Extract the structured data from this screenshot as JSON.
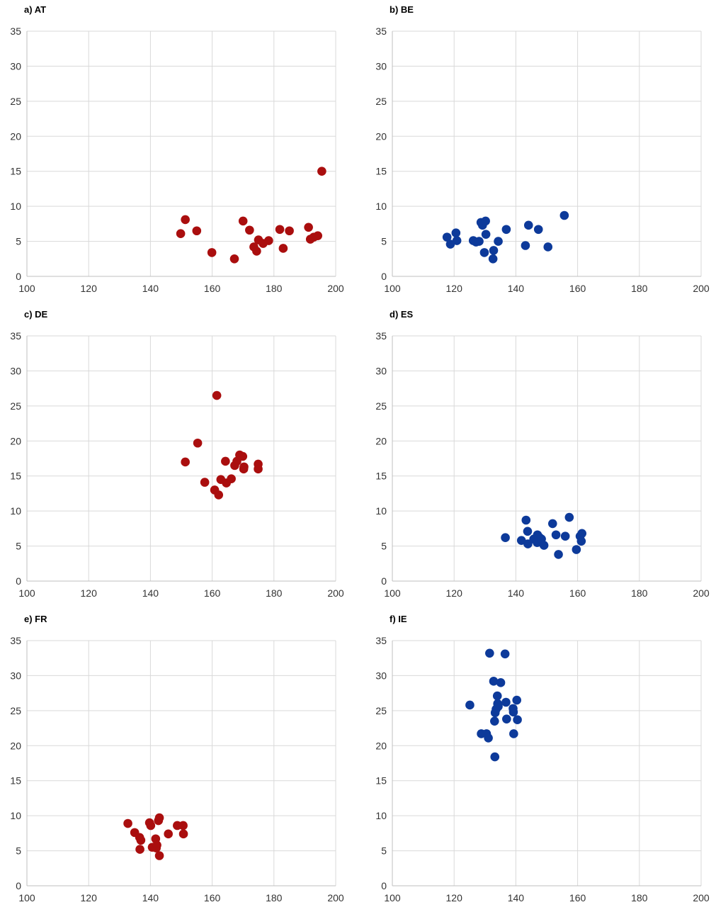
{
  "chart_data": [
    {
      "type": "scatter",
      "title": "a) AT",
      "xlim": [
        100,
        200
      ],
      "ylim": [
        0,
        35
      ],
      "xticks": [
        100,
        120,
        140,
        160,
        180,
        200
      ],
      "yticks": [
        0,
        5,
        10,
        15,
        20,
        25,
        30,
        35
      ],
      "grid": true,
      "color": "#aa0e0e",
      "points": [
        [
          149.8,
          6.1
        ],
        [
          151.3,
          8.1
        ],
        [
          155.0,
          6.5
        ],
        [
          159.9,
          3.4
        ],
        [
          167.2,
          2.5
        ],
        [
          170.0,
          7.9
        ],
        [
          172.1,
          6.6
        ],
        [
          173.5,
          4.2
        ],
        [
          174.4,
          3.6
        ],
        [
          175.0,
          5.2
        ],
        [
          176.5,
          4.7
        ],
        [
          178.3,
          5.1
        ],
        [
          181.9,
          6.7
        ],
        [
          183.0,
          4.0
        ],
        [
          185.0,
          6.5
        ],
        [
          191.2,
          7.0
        ],
        [
          191.8,
          5.3
        ],
        [
          192.9,
          5.6
        ],
        [
          194.2,
          5.8
        ],
        [
          195.5,
          15.0
        ]
      ]
    },
    {
      "type": "scatter",
      "title": "b) BE",
      "xlim": [
        100,
        200
      ],
      "ylim": [
        0,
        35
      ],
      "xticks": [
        100,
        120,
        140,
        160,
        180,
        200
      ],
      "yticks": [
        0,
        5,
        10,
        15,
        20,
        25,
        30,
        35
      ],
      "grid": true,
      "color": "#0d3a9a",
      "points": [
        [
          117.7,
          5.6
        ],
        [
          118.8,
          4.6
        ],
        [
          120.6,
          6.2
        ],
        [
          120.9,
          5.1
        ],
        [
          126.2,
          5.1
        ],
        [
          127.1,
          4.9
        ],
        [
          128.1,
          5.0
        ],
        [
          128.7,
          7.7
        ],
        [
          129.2,
          7.3
        ],
        [
          129.8,
          3.4
        ],
        [
          130.2,
          7.9
        ],
        [
          130.3,
          6.0
        ],
        [
          132.6,
          2.5
        ],
        [
          132.8,
          3.7
        ],
        [
          134.3,
          5.0
        ],
        [
          136.9,
          6.7
        ],
        [
          143.1,
          4.4
        ],
        [
          144.1,
          7.3
        ],
        [
          147.3,
          6.7
        ],
        [
          150.4,
          4.2
        ],
        [
          155.7,
          8.7
        ]
      ]
    },
    {
      "type": "scatter",
      "title": "c) DE",
      "xlim": [
        100,
        200
      ],
      "ylim": [
        0,
        35
      ],
      "xticks": [
        100,
        120,
        140,
        160,
        180,
        200
      ],
      "yticks": [
        0,
        5,
        10,
        15,
        20,
        25,
        30,
        35
      ],
      "grid": true,
      "color": "#aa0e0e",
      "points": [
        [
          151.3,
          17.0
        ],
        [
          155.3,
          19.7
        ],
        [
          157.6,
          14.1
        ],
        [
          160.8,
          13.0
        ],
        [
          161.5,
          26.5
        ],
        [
          162.1,
          12.3
        ],
        [
          162.8,
          14.5
        ],
        [
          164.3,
          17.1
        ],
        [
          164.6,
          14.0
        ],
        [
          166.2,
          14.6
        ],
        [
          167.3,
          16.5
        ],
        [
          168.0,
          17.1
        ],
        [
          168.9,
          18.0
        ],
        [
          169.9,
          17.8
        ],
        [
          170.2,
          16.0
        ],
        [
          170.3,
          16.3
        ],
        [
          174.9,
          16.7
        ],
        [
          174.9,
          16.0
        ]
      ]
    },
    {
      "type": "scatter",
      "title": "d) ES",
      "xlim": [
        100,
        200
      ],
      "ylim": [
        0,
        35
      ],
      "xticks": [
        100,
        120,
        140,
        160,
        180,
        200
      ],
      "yticks": [
        0,
        5,
        10,
        15,
        20,
        25,
        30,
        35
      ],
      "grid": true,
      "color": "#0d3a9a",
      "points": [
        [
          136.6,
          6.2
        ],
        [
          141.8,
          5.8
        ],
        [
          143.3,
          8.7
        ],
        [
          143.8,
          7.1
        ],
        [
          143.9,
          5.3
        ],
        [
          145.8,
          6.0
        ],
        [
          146.9,
          5.5
        ],
        [
          147.0,
          6.6
        ],
        [
          147.7,
          6.2
        ],
        [
          148.3,
          6.0
        ],
        [
          149.1,
          5.1
        ],
        [
          151.9,
          8.2
        ],
        [
          153.0,
          6.6
        ],
        [
          153.8,
          3.8
        ],
        [
          156.0,
          6.4
        ],
        [
          157.3,
          9.1
        ],
        [
          159.6,
          4.5
        ],
        [
          160.8,
          6.4
        ],
        [
          161.2,
          5.7
        ],
        [
          161.4,
          6.8
        ]
      ]
    },
    {
      "type": "scatter",
      "title": "e) FR",
      "xlim": [
        100,
        200
      ],
      "ylim": [
        0,
        35
      ],
      "xticks": [
        100,
        120,
        140,
        160,
        180,
        200
      ],
      "yticks": [
        0,
        5,
        10,
        15,
        20,
        25,
        30,
        35
      ],
      "grid": true,
      "color": "#aa0e0e",
      "points": [
        [
          132.7,
          8.9
        ],
        [
          134.9,
          7.6
        ],
        [
          136.5,
          6.9
        ],
        [
          136.6,
          5.2
        ],
        [
          136.9,
          6.5
        ],
        [
          139.7,
          9.0
        ],
        [
          140.1,
          8.6
        ],
        [
          140.6,
          5.5
        ],
        [
          141.7,
          6.7
        ],
        [
          141.9,
          5.4
        ],
        [
          142.1,
          5.8
        ],
        [
          142.6,
          9.3
        ],
        [
          142.9,
          9.7
        ],
        [
          142.9,
          4.3
        ],
        [
          145.8,
          7.4
        ],
        [
          148.7,
          8.6
        ],
        [
          150.6,
          8.6
        ],
        [
          150.7,
          7.4
        ]
      ]
    },
    {
      "type": "scatter",
      "title": "f) IE",
      "xlim": [
        100,
        200
      ],
      "ylim": [
        0,
        35
      ],
      "xticks": [
        100,
        120,
        140,
        160,
        180,
        200
      ],
      "yticks": [
        0,
        5,
        10,
        15,
        20,
        25,
        30,
        35
      ],
      "grid": true,
      "color": "#0d3a9a",
      "points": [
        [
          125.1,
          25.8
        ],
        [
          128.8,
          21.7
        ],
        [
          130.5,
          21.7
        ],
        [
          131.1,
          21.1
        ],
        [
          131.5,
          33.2
        ],
        [
          132.8,
          29.2
        ],
        [
          133.1,
          23.5
        ],
        [
          133.2,
          18.4
        ],
        [
          133.3,
          24.7
        ],
        [
          133.6,
          25.2
        ],
        [
          134.0,
          27.1
        ],
        [
          134.1,
          26.0
        ],
        [
          134.3,
          25.6
        ],
        [
          135.1,
          29.0
        ],
        [
          136.5,
          33.1
        ],
        [
          136.8,
          26.2
        ],
        [
          137.0,
          23.8
        ],
        [
          139.1,
          25.3
        ],
        [
          139.2,
          24.8
        ],
        [
          139.3,
          21.7
        ],
        [
          140.3,
          26.5
        ],
        [
          140.5,
          23.7
        ]
      ]
    }
  ]
}
